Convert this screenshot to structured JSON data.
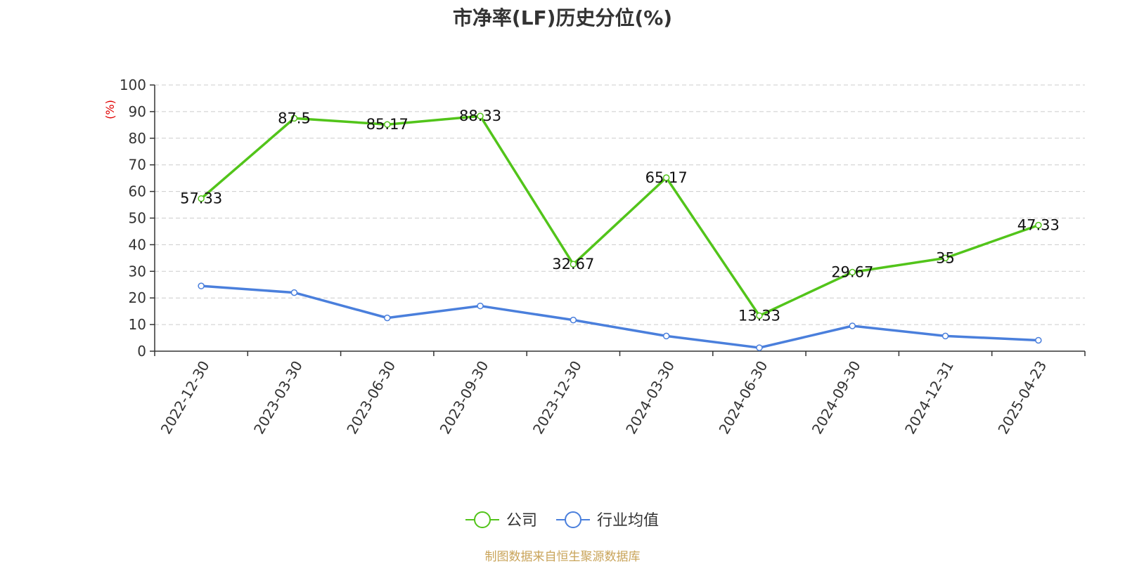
{
  "chart_data": {
    "type": "line",
    "title": "市净率(LF)历史分位(%)",
    "ylabel": "(%)",
    "categories": [
      "2022-12-30",
      "2023-03-30",
      "2023-06-30",
      "2023-09-30",
      "2023-12-30",
      "2024-03-30",
      "2024-06-30",
      "2024-09-30",
      "2024-12-31",
      "2025-04-23"
    ],
    "yticks": [
      "0",
      "10",
      "20",
      "30",
      "40",
      "50",
      "60",
      "70",
      "80",
      "90",
      "100"
    ],
    "ylim": [
      0,
      100
    ],
    "grid": true,
    "legend_position": "bottom",
    "series": [
      {
        "name": "公司",
        "color": "#52c41a",
        "values": [
          57.33,
          87.5,
          85.17,
          88.33,
          32.67,
          65.17,
          13.33,
          29.67,
          35,
          47.33
        ],
        "labels": [
          "57.33",
          "87.5",
          "85.17",
          "88.33",
          "32.67",
          "65.17",
          "13.33",
          "29.67",
          "35",
          "47.33"
        ]
      },
      {
        "name": "行业均值",
        "color": "#4a7fdc",
        "values": [
          24.5,
          22,
          12.5,
          17,
          11.7,
          5.7,
          1.3,
          9.5,
          5.7,
          4.1
        ]
      }
    ]
  },
  "source_note": "制图数据来自恒生聚源数据库"
}
